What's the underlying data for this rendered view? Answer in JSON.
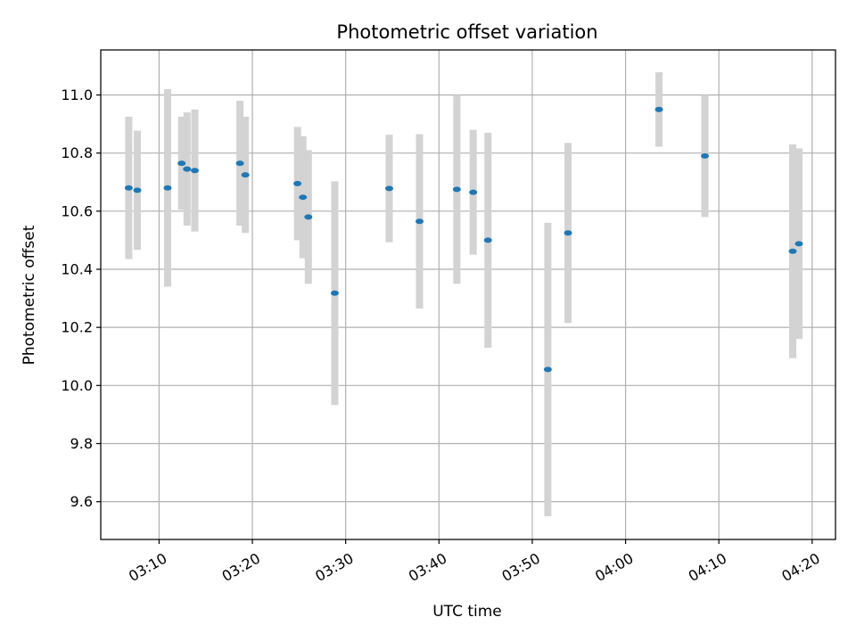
{
  "chart_data": {
    "type": "scatter",
    "title": "Photometric offset variation",
    "xlabel": "UTC time",
    "ylabel": "Photometric offset",
    "xlim": [
      "03:03:45",
      "04:22:30"
    ],
    "ylim": [
      9.47,
      11.155
    ],
    "x_ticks": [
      "03:10",
      "03:20",
      "03:30",
      "03:40",
      "03:50",
      "04:00",
      "04:10",
      "04:20"
    ],
    "y_ticks": [
      "9.6",
      "9.8",
      "10.0",
      "10.2",
      "10.4",
      "10.6",
      "10.8",
      "11.0"
    ],
    "grid": true,
    "colors": {
      "point": "#1f77b4",
      "errorbar": "#d3d3d3",
      "grid": "#b0b0b0"
    },
    "series": [
      {
        "points": [
          {
            "x": "03:06:45",
            "y": 10.68,
            "yerr": 0.245
          },
          {
            "x": "03:07:40",
            "y": 10.672,
            "yerr": 0.205
          },
          {
            "x": "03:10:55",
            "y": 10.68,
            "yerr": 0.34
          },
          {
            "x": "03:12:25",
            "y": 10.765,
            "yerr": 0.16
          },
          {
            "x": "03:13:00",
            "y": 10.745,
            "yerr": 0.195
          },
          {
            "x": "03:13:50",
            "y": 10.74,
            "yerr": 0.21
          },
          {
            "x": "03:18:40",
            "y": 10.765,
            "yerr": 0.215
          },
          {
            "x": "03:19:15",
            "y": 10.725,
            "yerr": 0.2
          },
          {
            "x": "03:24:50",
            "y": 10.695,
            "yerr": 0.195
          },
          {
            "x": "03:25:25",
            "y": 10.648,
            "yerr": 0.21
          },
          {
            "x": "03:26:00",
            "y": 10.58,
            "yerr": 0.23
          },
          {
            "x": "03:28:50",
            "y": 10.318,
            "yerr": 0.385
          },
          {
            "x": "03:34:40",
            "y": 10.678,
            "yerr": 0.185
          },
          {
            "x": "03:37:55",
            "y": 10.565,
            "yerr": 0.3
          },
          {
            "x": "03:41:55",
            "y": 10.675,
            "yerr": 0.325
          },
          {
            "x": "03:43:40",
            "y": 10.665,
            "yerr": 0.215
          },
          {
            "x": "03:45:15",
            "y": 10.5,
            "yerr": 0.37
          },
          {
            "x": "03:51:40",
            "y": 10.055,
            "yerr": 0.505
          },
          {
            "x": "03:53:50",
            "y": 10.525,
            "yerr": 0.31
          },
          {
            "x": "04:03:35",
            "y": 10.95,
            "yerr": 0.128
          },
          {
            "x": "04:08:30",
            "y": 10.79,
            "yerr": 0.21
          },
          {
            "x": "04:17:55",
            "y": 10.462,
            "yerr": 0.368
          },
          {
            "x": "04:18:35",
            "y": 10.488,
            "yerr": 0.328
          }
        ]
      }
    ]
  }
}
